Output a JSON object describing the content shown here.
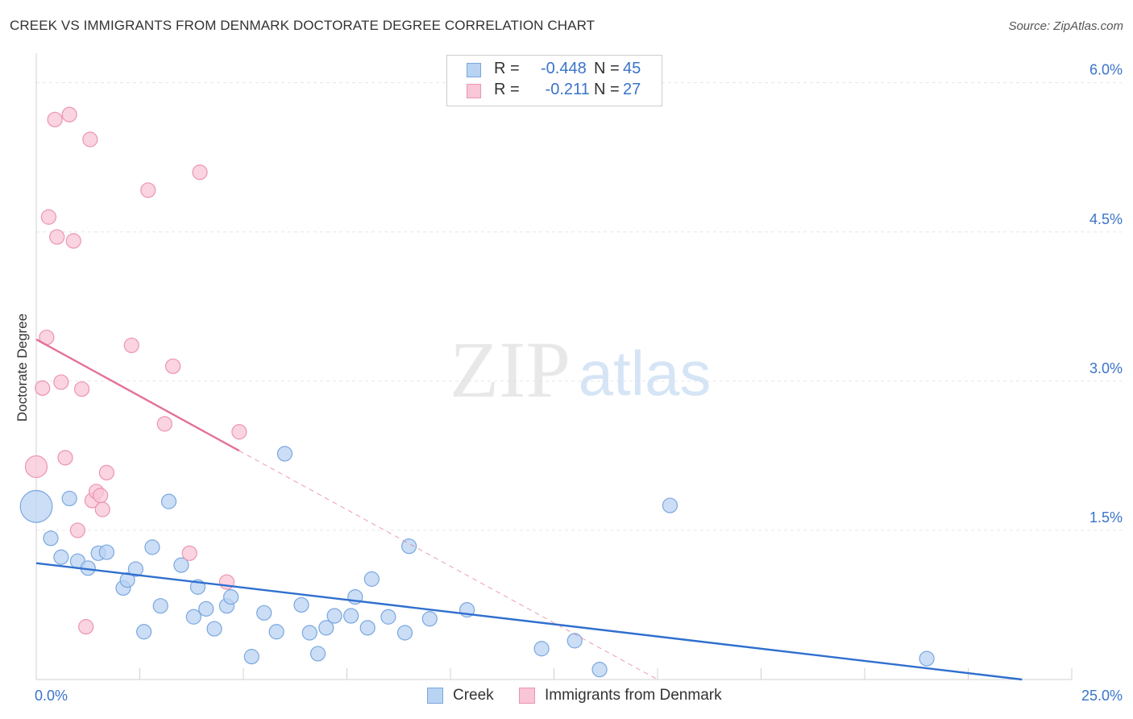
{
  "title": "CREEK VS IMMIGRANTS FROM DENMARK DOCTORATE DEGREE CORRELATION CHART",
  "source": "Source: ZipAtlas.com",
  "watermark": {
    "zip": "ZIP",
    "atlas": "atlas"
  },
  "colors": {
    "creek_fill": "#b9d3f3",
    "creek_stroke": "#7aa7df",
    "creek_line": "#2f6fcf",
    "denmark_fill": "#f8c6d6",
    "denmark_stroke": "#ec94b1",
    "denmark_line": "#e4709a",
    "axis_text": "#3a74c9",
    "grid": "#e6e6e6"
  },
  "legend_top": [
    {
      "r_label": "R = ",
      "r_value": "-0.448",
      "n_label": "N = ",
      "n_value": "45"
    },
    {
      "r_label": "R = ",
      "r_value": " -0.211",
      "n_label": "N = ",
      "n_value": "27"
    }
  ],
  "legend_bottom": [
    "Creek",
    "Immigrants from Denmark"
  ],
  "chart_data": {
    "type": "scatter",
    "title": "CREEK VS IMMIGRANTS FROM DENMARK DOCTORATE DEGREE CORRELATION CHART",
    "xlabel": "",
    "ylabel": "Doctorate Degree",
    "xlim": [
      0,
      25
    ],
    "ylim": [
      0,
      6.2
    ],
    "x_tick_labels": [
      {
        "value": 0,
        "label": "0.0%"
      },
      {
        "value": 25,
        "label": "25.0%"
      }
    ],
    "y_tick_labels": [
      {
        "value": 1.5,
        "label": "1.5%"
      },
      {
        "value": 3.0,
        "label": "3.0%"
      },
      {
        "value": 4.5,
        "label": "4.5%"
      },
      {
        "value": 6.0,
        "label": "6.0%"
      }
    ],
    "series": [
      {
        "name": "Creek",
        "points": [
          [
            0.0,
            1.74,
            2.2
          ],
          [
            0.8,
            1.82,
            1
          ],
          [
            0.35,
            1.42,
            1
          ],
          [
            0.6,
            1.23,
            1
          ],
          [
            1.0,
            1.19,
            1
          ],
          [
            1.25,
            1.12,
            1
          ],
          [
            1.5,
            1.27,
            1
          ],
          [
            1.7,
            1.28,
            1
          ],
          [
            2.1,
            0.92,
            1
          ],
          [
            2.2,
            1.0,
            1
          ],
          [
            2.4,
            1.11,
            1
          ],
          [
            2.6,
            0.48,
            1
          ],
          [
            2.8,
            1.33,
            1
          ],
          [
            3.0,
            0.74,
            1
          ],
          [
            3.2,
            1.79,
            1
          ],
          [
            3.5,
            1.15,
            1
          ],
          [
            3.8,
            0.63,
            1
          ],
          [
            3.9,
            0.93,
            1
          ],
          [
            4.1,
            0.71,
            1
          ],
          [
            4.3,
            0.51,
            1
          ],
          [
            4.6,
            0.74,
            1
          ],
          [
            4.7,
            0.83,
            1
          ],
          [
            5.2,
            0.23,
            1
          ],
          [
            5.5,
            0.67,
            1
          ],
          [
            5.8,
            0.48,
            1
          ],
          [
            6.0,
            2.27,
            1
          ],
          [
            6.4,
            0.75,
            1
          ],
          [
            6.6,
            0.47,
            1
          ],
          [
            6.8,
            0.26,
            1
          ],
          [
            7.0,
            0.52,
            1
          ],
          [
            7.2,
            0.64,
            1
          ],
          [
            7.6,
            0.64,
            1
          ],
          [
            7.7,
            0.83,
            1
          ],
          [
            8.0,
            0.52,
            1
          ],
          [
            8.1,
            1.01,
            1
          ],
          [
            8.5,
            0.63,
            1
          ],
          [
            8.9,
            0.47,
            1
          ],
          [
            9.0,
            1.34,
            1
          ],
          [
            9.5,
            0.61,
            1
          ],
          [
            10.4,
            0.7,
            1
          ],
          [
            12.2,
            0.31,
            1
          ],
          [
            13.0,
            0.39,
            1
          ],
          [
            13.6,
            0.1,
            1
          ],
          [
            15.3,
            1.75,
            1
          ],
          [
            21.5,
            0.21,
            1
          ]
        ],
        "trend": {
          "x0": 0,
          "y0": 1.17,
          "x1": 23.8,
          "y1": 0.0
        }
      },
      {
        "name": "Immigrants from Denmark",
        "points": [
          [
            0.0,
            2.14,
            1.5
          ],
          [
            0.15,
            2.93,
            1
          ],
          [
            0.25,
            3.44,
            1
          ],
          [
            0.3,
            4.65,
            1
          ],
          [
            0.45,
            5.63,
            1
          ],
          [
            0.5,
            4.45,
            1
          ],
          [
            0.6,
            2.99,
            1
          ],
          [
            0.7,
            2.23,
            1
          ],
          [
            0.8,
            5.68,
            1
          ],
          [
            0.9,
            4.41,
            1
          ],
          [
            1.0,
            1.5,
            1
          ],
          [
            1.1,
            2.92,
            1
          ],
          [
            1.2,
            0.53,
            1
          ],
          [
            1.3,
            5.43,
            1
          ],
          [
            1.35,
            1.8,
            1
          ],
          [
            1.45,
            1.89,
            1
          ],
          [
            1.55,
            1.85,
            1
          ],
          [
            1.6,
            1.71,
            1
          ],
          [
            1.7,
            2.08,
            1
          ],
          [
            2.3,
            3.36,
            1
          ],
          [
            2.7,
            4.92,
            1
          ],
          [
            3.1,
            2.57,
            1
          ],
          [
            3.3,
            3.15,
            1
          ],
          [
            3.7,
            1.27,
            1
          ],
          [
            3.95,
            5.1,
            1
          ],
          [
            4.6,
            0.98,
            1
          ],
          [
            4.9,
            2.49,
            1
          ]
        ],
        "trend": {
          "x0": 0,
          "y0": 3.42,
          "x1": 4.9,
          "y1": 2.3
        },
        "trend_dashed": {
          "x0": 4.9,
          "y0": 2.3,
          "x1": 15.0,
          "y1": 0.0
        }
      }
    ]
  }
}
